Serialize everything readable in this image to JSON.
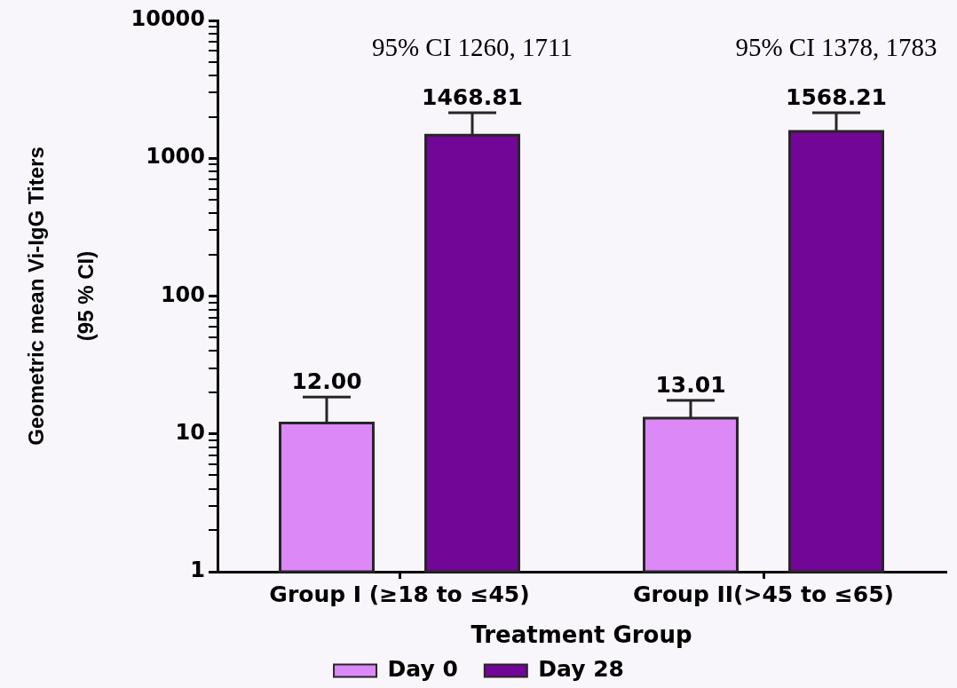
{
  "chart_data": {
    "type": "bar",
    "categories": [
      "Group I (≥18 to ≤45)",
      "Group II(>45 to ≤65)"
    ],
    "series": [
      {
        "name": "Day 0",
        "color": "#dd88f7",
        "values": [
          12.0,
          13.01
        ],
        "value_labels": [
          "12.00",
          "13.01"
        ],
        "errors": [
          [
            12.0,
            18.5
          ],
          [
            13.01,
            17.5
          ]
        ]
      },
      {
        "name": "Day 28",
        "color": "#720696",
        "values": [
          1468.81,
          1568.21
        ],
        "value_labels": [
          "1468.81",
          "1568.21"
        ],
        "errors": [
          [
            1468.81,
            2140
          ],
          [
            1568.21,
            2140
          ]
        ]
      }
    ],
    "xlabel": "Treatment Group",
    "ylabel": "Geometric mean Vi-IgG Titers\n(95 % CI)",
    "annotations": [
      "95% CI 1260, 1711",
      "95% CI 1378, 1783"
    ],
    "log": true,
    "ylim": [
      1,
      10000
    ],
    "yticks": [
      1,
      {
        "value": 2,
        "label": null
      },
      {
        "value": 3,
        "label": null
      },
      {
        "value": 4,
        "label": null
      },
      {
        "value": 5,
        "label": null
      },
      {
        "value": 6,
        "label": null
      },
      {
        "value": 7,
        "label": null
      },
      {
        "value": 8,
        "label": null
      },
      {
        "value": 9,
        "label": null
      },
      10,
      {
        "value": 20,
        "label": null
      },
      {
        "value": 30,
        "label": null
      },
      {
        "value": 40,
        "label": null
      },
      {
        "value": 50,
        "label": null
      },
      {
        "value": 60,
        "label": null
      },
      {
        "value": 70,
        "label": null
      },
      {
        "value": 80,
        "label": null
      },
      {
        "value": 90,
        "label": null
      },
      100,
      {
        "value": 200,
        "label": null
      },
      {
        "value": 300,
        "label": null
      },
      {
        "value": 400,
        "label": null
      },
      {
        "value": 500,
        "label": null
      },
      {
        "value": 600,
        "label": null
      },
      {
        "value": 700,
        "label": null
      },
      {
        "value": 800,
        "label": null
      },
      {
        "value": 900,
        "label": null
      },
      1000,
      {
        "value": 2000,
        "label": null
      },
      {
        "value": 3000,
        "label": null
      },
      {
        "value": 4000,
        "label": null
      },
      {
        "value": 5000,
        "label": null
      },
      {
        "value": 6000,
        "label": null
      },
      {
        "value": 7000,
        "label": null
      },
      {
        "value": 8000,
        "label": null
      },
      {
        "value": 9000,
        "label": null
      },
      10000
    ],
    "grid": false,
    "legend": "bottom"
  }
}
